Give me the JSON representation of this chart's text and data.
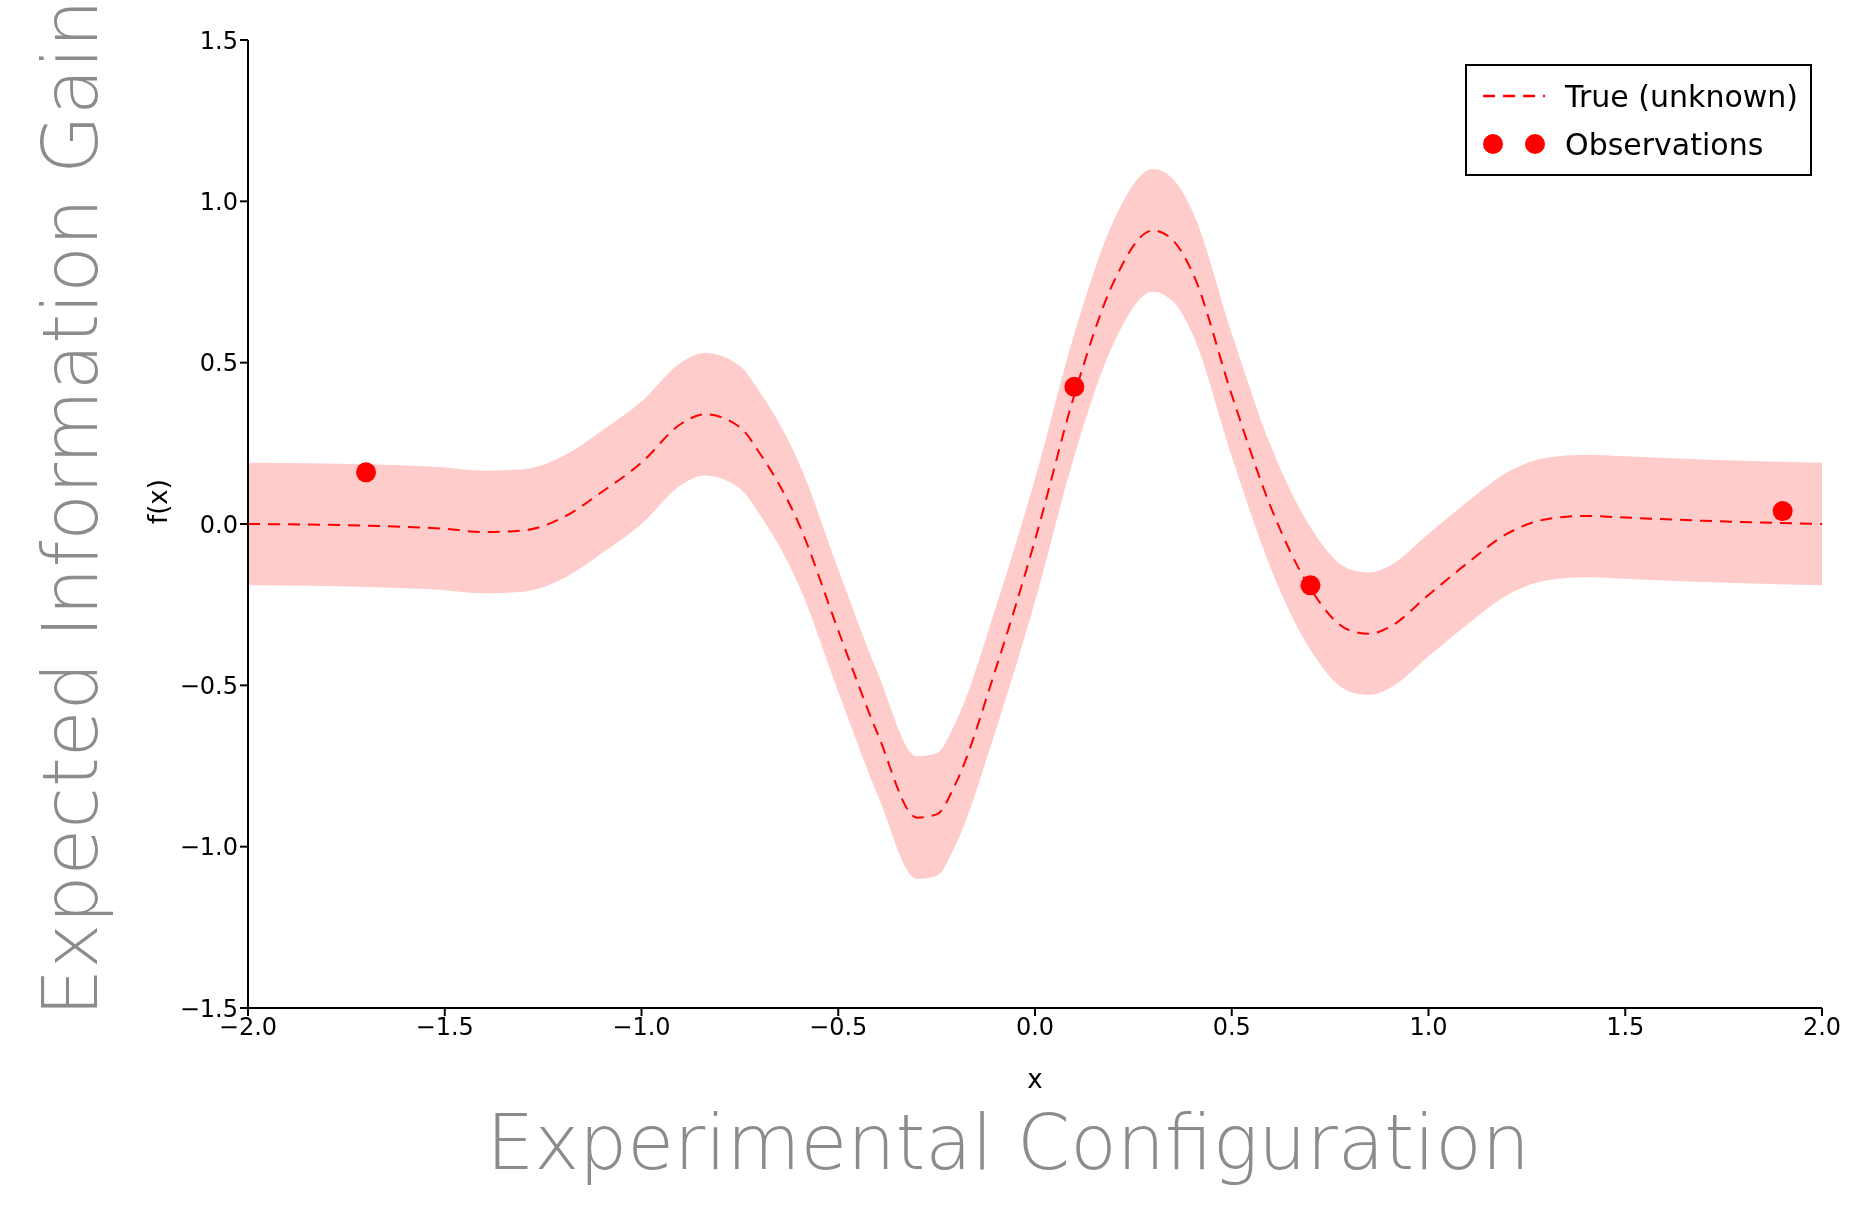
{
  "chart_data": {
    "type": "line",
    "xlabel": "x",
    "ylabel": "f(x)",
    "annotations": [
      "Expected Information Gain",
      "Experimental Configuration"
    ],
    "xlim": [
      -2.0,
      2.0
    ],
    "xticks": [
      {
        "value": -2,
        "label": "−2.0"
      },
      {
        "value": -1.5,
        "label": "−1.5"
      },
      {
        "value": -1,
        "label": "−1.0"
      },
      {
        "value": -0.5,
        "label": "−0.5"
      },
      {
        "value": 0,
        "label": "0.0"
      },
      {
        "value": 0.5,
        "label": "0.5"
      },
      {
        "value": 1,
        "label": "1.0"
      },
      {
        "value": 1.5,
        "label": "1.5"
      },
      {
        "value": 2,
        "label": "2.0"
      }
    ],
    "ylim": [
      -1.5,
      1.5
    ],
    "yticks": [
      {
        "value": -1.5,
        "label": "−1.5"
      },
      {
        "value": -1,
        "label": "−1.0"
      },
      {
        "value": -0.5,
        "label": "−0.5"
      },
      {
        "value": 0,
        "label": "0.0"
      },
      {
        "value": 0.5,
        "label": "0.5"
      },
      {
        "value": 1,
        "label": "1.0"
      },
      {
        "value": 1.5,
        "label": "1.5"
      }
    ],
    "grid": false,
    "legend": "top right",
    "series": [
      {
        "name": "True (unknown)",
        "color": "#ff0000",
        "line_style": "dashed",
        "marker": "none",
        "x": [
          -2.0,
          -1.7,
          -1.5,
          -1.4,
          -1.3,
          -1.2,
          -1.1,
          -1.0,
          -0.9,
          -0.84,
          -0.75,
          -0.7,
          -0.6,
          -0.5,
          -0.4,
          -0.3,
          -0.25,
          -0.2,
          -0.1,
          0.0,
          0.1,
          0.2,
          0.3,
          0.35,
          0.4,
          0.5,
          0.6,
          0.7,
          0.8,
          0.85,
          0.9,
          1.0,
          1.1,
          1.2,
          1.3,
          1.4,
          1.5,
          1.7,
          2.0
        ],
        "values": [
          0.0,
          -0.005,
          -0.015,
          -0.025,
          -0.02,
          0.02,
          0.1,
          0.19,
          0.31,
          0.34,
          0.3,
          0.22,
          0.0,
          -0.33,
          -0.65,
          -0.91,
          -0.9,
          -0.8,
          -0.45,
          -0.05,
          0.4,
          0.75,
          0.91,
          0.88,
          0.78,
          0.4,
          0.05,
          -0.2,
          -0.33,
          -0.34,
          -0.32,
          -0.22,
          -0.12,
          -0.03,
          0.015,
          0.025,
          0.02,
          0.01,
          0.0
        ],
        "lower": [
          -0.19,
          -0.195,
          -0.205,
          -0.215,
          -0.21,
          -0.17,
          -0.09,
          0.0,
          0.12,
          0.15,
          0.11,
          0.03,
          -0.19,
          -0.52,
          -0.84,
          -1.1,
          -1.09,
          -0.99,
          -0.64,
          -0.24,
          0.21,
          0.56,
          0.72,
          0.69,
          0.59,
          0.21,
          -0.14,
          -0.39,
          -0.52,
          -0.53,
          -0.51,
          -0.41,
          -0.31,
          -0.22,
          -0.175,
          -0.165,
          -0.17,
          -0.18,
          -0.19
        ],
        "upper": [
          0.19,
          0.185,
          0.175,
          0.165,
          0.17,
          0.21,
          0.29,
          0.38,
          0.5,
          0.53,
          0.49,
          0.41,
          0.19,
          -0.14,
          -0.46,
          -0.72,
          -0.71,
          -0.61,
          -0.26,
          0.14,
          0.59,
          0.94,
          1.1,
          1.07,
          0.97,
          0.59,
          0.24,
          -0.01,
          -0.14,
          -0.15,
          -0.13,
          -0.03,
          0.07,
          0.16,
          0.205,
          0.215,
          0.21,
          0.2,
          0.19
        ]
      },
      {
        "type": "scatter",
        "name": "Observations",
        "color": "#ff0000",
        "marker": "circle",
        "x": [
          -1.7,
          0.1,
          0.7,
          1.9
        ],
        "values": [
          0.16,
          0.425,
          -0.19,
          0.04
        ]
      }
    ]
  }
}
